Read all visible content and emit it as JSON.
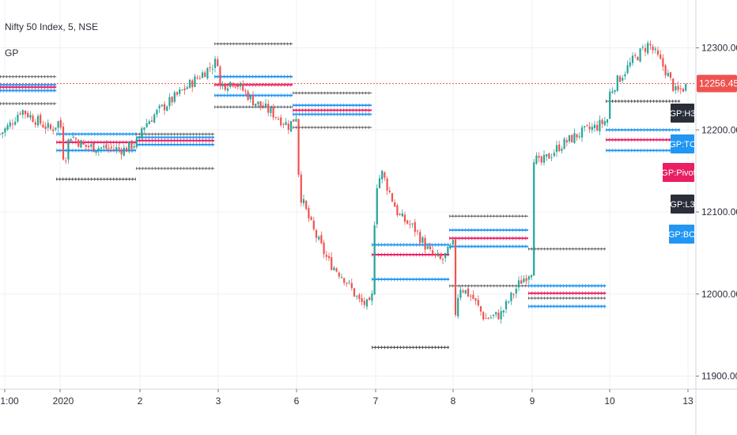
{
  "header": {
    "title": "Nifty 50 Index, 5, NSE",
    "indicator": "GP"
  },
  "price_tag": {
    "value": "12256.45",
    "color": "#ef5350"
  },
  "colors": {
    "up": "#26a69a",
    "down": "#ef5350",
    "tc_bc": "#2196f3",
    "pivot": "#e91e63",
    "dark": "#4a4a4a",
    "purple": "#6a1b4d",
    "current": "#ef5350"
  },
  "chart_data": {
    "type": "candlestick",
    "title": "Nifty 50 Index, 5, NSE",
    "x_ticks": [
      "1:00",
      "2020",
      "2",
      "3",
      "6",
      "7",
      "8",
      "9",
      "10",
      "13"
    ],
    "y_ticks": [
      11900,
      12000,
      12100,
      12200,
      12300
    ],
    "y_tick_labels": [
      "11900.00",
      "12000.00",
      "12100.00",
      "12200.00",
      "12300.00"
    ],
    "ylim": [
      11890,
      12370
    ],
    "current_price": 12256.45,
    "price_path": [
      [
        0.0,
        12195
      ],
      [
        0.15,
        12205
      ],
      [
        0.35,
        12225
      ],
      [
        0.6,
        12212
      ],
      [
        0.85,
        12200
      ],
      [
        1.0,
        12212
      ],
      [
        1.0,
        12212
      ],
      [
        1.05,
        12158
      ],
      [
        1.12,
        12195
      ],
      [
        1.3,
        12180
      ],
      [
        1.55,
        12178
      ],
      [
        1.8,
        12176
      ],
      [
        2.0,
        12187
      ],
      [
        2.0,
        12200
      ],
      [
        2.2,
        12220
      ],
      [
        2.45,
        12240
      ],
      [
        2.75,
        12265
      ],
      [
        3.0,
        12285
      ],
      [
        3.0,
        12252
      ],
      [
        3.2,
        12260
      ],
      [
        3.45,
        12235
      ],
      [
        3.7,
        12220
      ],
      [
        3.9,
        12205
      ],
      [
        4.0,
        12218
      ],
      [
        4.0,
        12180
      ],
      [
        4.05,
        12120
      ],
      [
        4.2,
        12080
      ],
      [
        4.4,
        12040
      ],
      [
        4.6,
        12020
      ],
      [
        4.8,
        11990
      ],
      [
        4.95,
        11985
      ],
      [
        5.0,
        12130
      ],
      [
        5.08,
        12148
      ],
      [
        5.3,
        12095
      ],
      [
        5.5,
        12080
      ],
      [
        5.7,
        12050
      ],
      [
        5.85,
        12040
      ],
      [
        6.0,
        12060
      ],
      [
        6.0,
        11958
      ],
      [
        6.08,
        12010
      ],
      [
        6.25,
        11995
      ],
      [
        6.4,
        11970
      ],
      [
        6.6,
        11975
      ],
      [
        6.85,
        12015
      ],
      [
        7.0,
        12030
      ],
      [
        7.0,
        12170
      ],
      [
        7.1,
        12158
      ],
      [
        7.35,
        12180
      ],
      [
        7.6,
        12195
      ],
      [
        7.85,
        12205
      ],
      [
        8.0,
        12215
      ],
      [
        8.0,
        12245
      ],
      [
        8.1,
        12260
      ],
      [
        8.3,
        12285
      ],
      [
        8.5,
        12305
      ],
      [
        8.7,
        12275
      ],
      [
        8.85,
        12245
      ],
      [
        9.0,
        12255
      ]
    ],
    "pivot_levels": [
      {
        "day": 0,
        "x0": -0.3,
        "x1": 0.95,
        "H3": 12265,
        "TC": 12255,
        "Pivot": 12252,
        "BC": 12248,
        "L3": 12232
      },
      {
        "day": 1,
        "x0": 0.95,
        "x1": 1.95,
        "H3": 12140,
        "TC": 12195,
        "Pivot": 12185,
        "BC": 12175,
        "L3": 12140
      },
      {
        "day": 2,
        "x0": 1.95,
        "x1": 2.95,
        "H3": 12195,
        "TC": 12191,
        "Pivot": 12187,
        "BC": 12182,
        "L3": 12153
      },
      {
        "day": 3,
        "x0": 2.95,
        "x1": 3.95,
        "H3": 12305,
        "TC": 12265,
        "Pivot": 12255,
        "BC": 12242,
        "L3": 12228
      },
      {
        "day": 4,
        "x0": 3.95,
        "x1": 4.95,
        "H3": 12245,
        "TC": 12230,
        "Pivot": 12224,
        "BC": 12219,
        "L3": 12203
      },
      {
        "day": 5,
        "x0": 4.95,
        "x1": 5.95,
        "H3": 11935,
        "TC": 12060,
        "Pivot": 12048,
        "BC": 12018,
        "L3": 11935
      },
      {
        "day": 6,
        "x0": 5.95,
        "x1": 6.95,
        "H3": 12095,
        "TC": 12078,
        "Pivot": 12068,
        "BC": 12058,
        "L3": 12010
      },
      {
        "day": 7,
        "x0": 6.95,
        "x1": 7.95,
        "H3": 12055,
        "TC": 12010,
        "Pivot": 12001,
        "BC": 11985,
        "L3": 11995
      },
      {
        "day": 8,
        "x0": 7.95,
        "x1": 8.9,
        "H3": 12235,
        "TC": 12200,
        "Pivot": 12188,
        "BC": 12175,
        "L3": 12235
      }
    ],
    "level_tags": [
      {
        "text": "GP:H3",
        "color": "#2a2e39"
      },
      {
        "text": "GP:TC",
        "color": "#2196f3"
      },
      {
        "text": "GP:Pivot",
        "color": "#e91e63"
      },
      {
        "text": "GP:L3",
        "color": "#2a2e39"
      },
      {
        "text": "GP:BC",
        "color": "#2196f3"
      }
    ]
  }
}
